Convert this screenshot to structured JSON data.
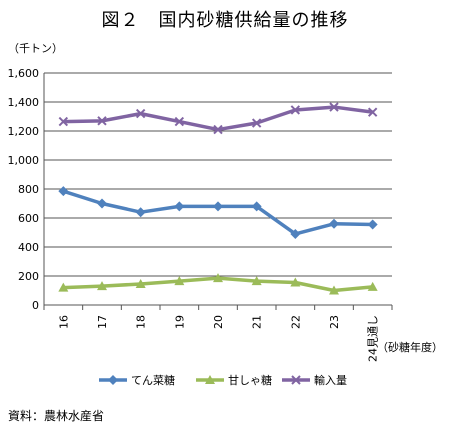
{
  "title": "図２　国内砂糖供給量の推移",
  "source": "資料：農林水産省",
  "chart_data": {
    "type": "line",
    "unit_label": "（千トン）",
    "xlabel": "（砂糖年度）",
    "categories": [
      "16",
      "17",
      "18",
      "19",
      "20",
      "21",
      "22",
      "23",
      "24見通し"
    ],
    "ylim": [
      0,
      1600
    ],
    "yticks": [
      0,
      200,
      400,
      600,
      800,
      1000,
      1200,
      1400,
      1600
    ],
    "ytick_labels": [
      "0",
      "200",
      "400",
      "600",
      "800",
      "1,000",
      "1,200",
      "1,400",
      "1,600"
    ],
    "grid": true,
    "legend_position": "bottom",
    "series": [
      {
        "name": "てん菜糖",
        "color": "#4f81bd",
        "marker": "diamond",
        "values": [
          785,
          700,
          640,
          680,
          680,
          680,
          490,
          560,
          555
        ]
      },
      {
        "name": "甘しゃ糖",
        "color": "#9bbb59",
        "marker": "triangle",
        "values": [
          120,
          130,
          145,
          165,
          185,
          165,
          155,
          100,
          125
        ]
      },
      {
        "name": "輸入量",
        "color": "#8064a2",
        "marker": "x",
        "values": [
          1265,
          1270,
          1320,
          1265,
          1210,
          1255,
          1345,
          1365,
          1330
        ]
      }
    ]
  }
}
